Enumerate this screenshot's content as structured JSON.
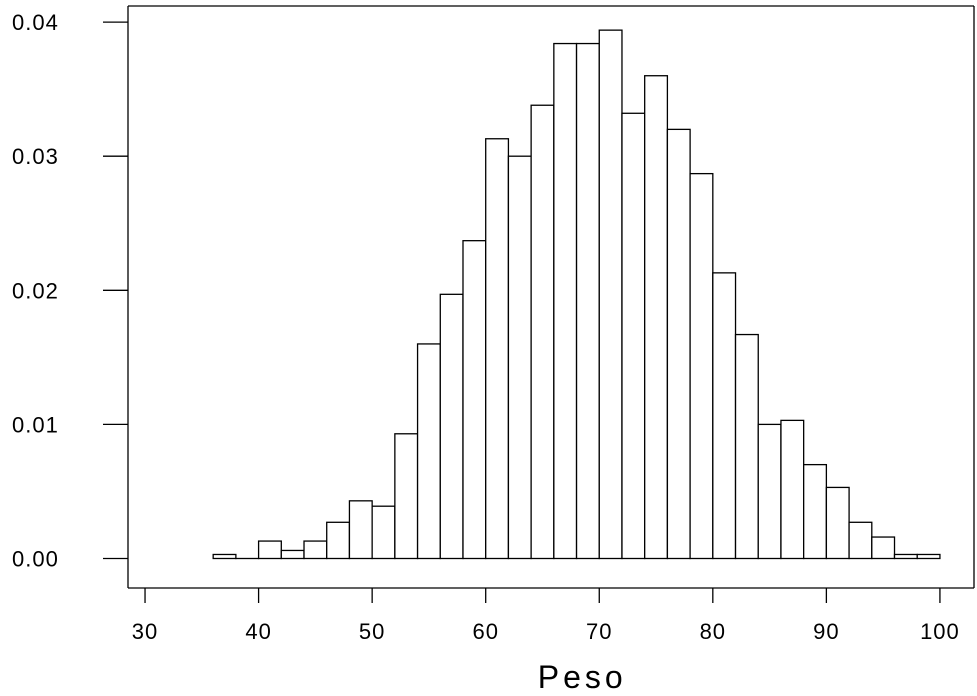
{
  "chart_data": {
    "type": "bar",
    "subtype": "histogram",
    "xlabel": "Peso",
    "ylabel": "",
    "xlim": [
      28.5,
      103
    ],
    "ylim": [
      -0.0022,
      0.0412
    ],
    "x_ticks": [
      30,
      40,
      50,
      60,
      70,
      80,
      90,
      100
    ],
    "x_tick_labels": [
      "30",
      "40",
      "50",
      "60",
      "70",
      "80",
      "90",
      "100"
    ],
    "y_ticks": [
      0.0,
      0.01,
      0.02,
      0.03,
      0.04
    ],
    "y_tick_labels": [
      "0.00",
      "0.01",
      "0.02",
      "0.03",
      "0.04"
    ],
    "bin_width": 2,
    "bin_starts": [
      36,
      38,
      40,
      42,
      44,
      46,
      48,
      50,
      52,
      54,
      56,
      58,
      60,
      62,
      64,
      66,
      68,
      70,
      72,
      74,
      76,
      78,
      80,
      82,
      84,
      86,
      88,
      90,
      92,
      94,
      96,
      98
    ],
    "values": [
      0.0003,
      0.0,
      0.0013,
      0.0006,
      0.0013,
      0.0027,
      0.0043,
      0.0039,
      0.0093,
      0.016,
      0.0197,
      0.0237,
      0.0313,
      0.03,
      0.0338,
      0.0384,
      0.0384,
      0.0394,
      0.0332,
      0.036,
      0.032,
      0.0287,
      0.0213,
      0.0167,
      0.01,
      0.0103,
      0.007,
      0.0053,
      0.0027,
      0.0016,
      0.0003,
      0.0003
    ],
    "grid": false,
    "bar_fill": "#ffffff",
    "bar_stroke": "#000000"
  }
}
